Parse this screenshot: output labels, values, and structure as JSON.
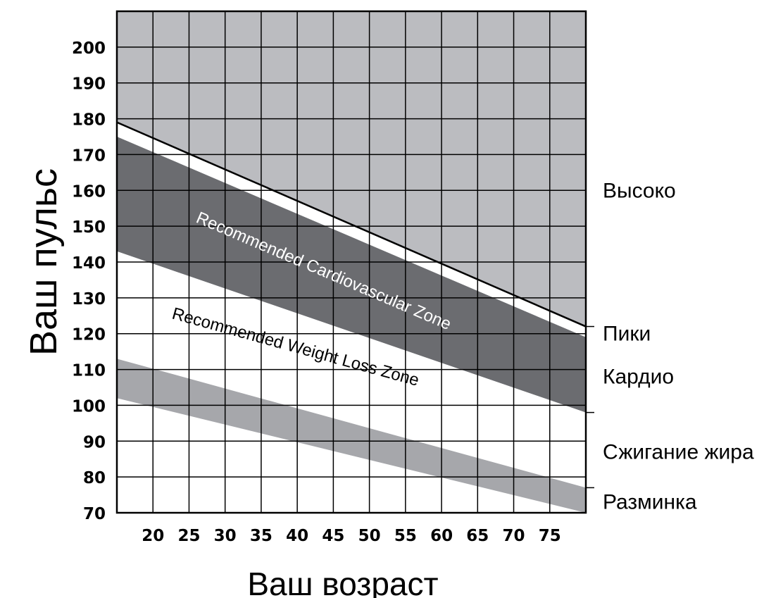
{
  "chart_data": {
    "type": "area",
    "title": "",
    "xlabel": "Ваш возраст",
    "ylabel": "Ваш пульс",
    "xlim": [
      15,
      80
    ],
    "ylim": [
      70,
      210
    ],
    "x_ticks": [
      20,
      25,
      30,
      35,
      40,
      45,
      50,
      55,
      60,
      65,
      70,
      75
    ],
    "y_ticks": [
      70,
      80,
      90,
      100,
      110,
      120,
      130,
      140,
      150,
      160,
      170,
      180,
      190,
      200
    ],
    "grid": true,
    "max_heart_rate_line": {
      "x": [
        15,
        80
      ],
      "y": [
        179,
        122
      ]
    },
    "series": [
      {
        "name": "Recommended Cardiovascular Zone",
        "x": [
          15,
          80
        ],
        "upper": [
          175,
          119
        ],
        "lower": [
          143,
          98
        ],
        "color": "#6b6c70"
      },
      {
        "name": "Recommended Weight Loss Zone",
        "x": [
          15,
          80
        ],
        "upper": [
          113,
          77
        ],
        "lower": [
          102,
          70
        ],
        "color": "#a6a7ab"
      }
    ],
    "zones": [
      {
        "label": "Высоко",
        "value": 160
      },
      {
        "label": "Пики",
        "value": 120
      },
      {
        "label": "Кардио",
        "value": 108
      },
      {
        "label": "Сжигание жира",
        "value": 87
      },
      {
        "label": "Разминка",
        "value": 73
      }
    ],
    "zone_ticks": [
      122,
      98,
      77
    ],
    "colors": {
      "above_max": "#bbbcc0",
      "grid": "#000000",
      "band_label_dark": "#ffffff",
      "band_label_light": "#000000"
    }
  }
}
